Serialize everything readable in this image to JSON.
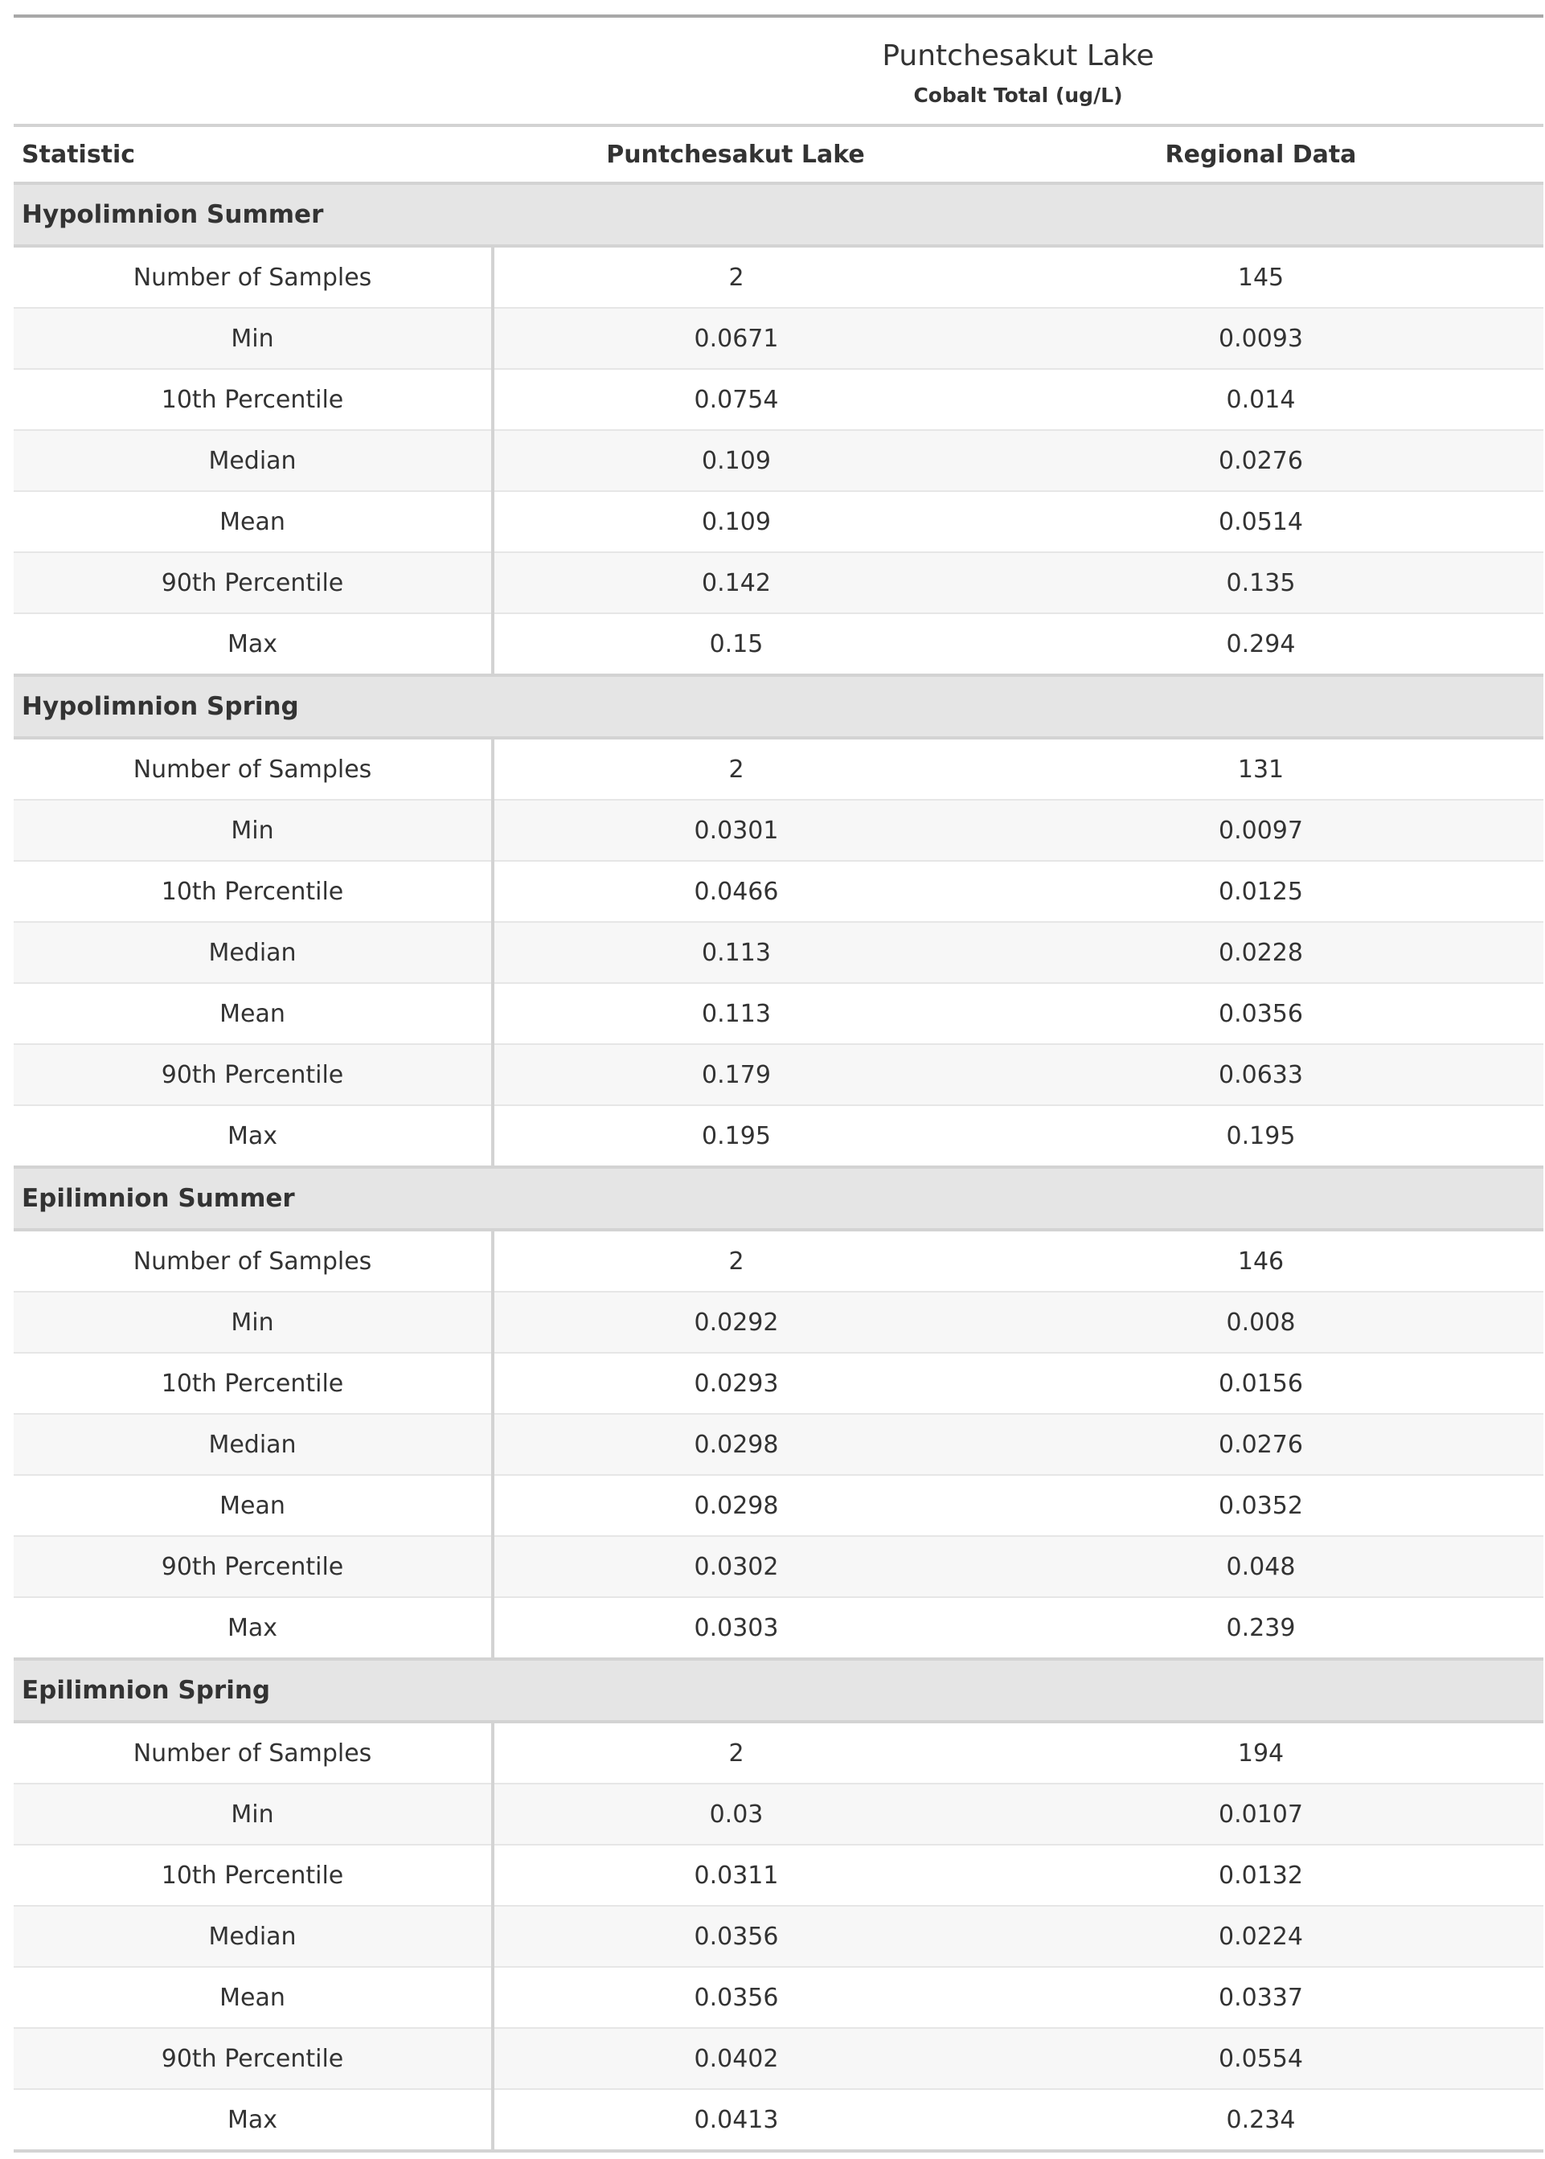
{
  "header": {
    "title": "Puntchesakut Lake",
    "subtitle": "Cobalt Total (ug/L)"
  },
  "columns": [
    "Statistic",
    "Puntchesakut Lake",
    "Regional Data"
  ],
  "groups": [
    {
      "label": "Hypolimnion Summer",
      "rows": [
        [
          "Number of Samples",
          "2",
          "145"
        ],
        [
          "Min",
          "0.0671",
          "0.0093"
        ],
        [
          "10th Percentile",
          "0.0754",
          "0.014"
        ],
        [
          "Median",
          "0.109",
          "0.0276"
        ],
        [
          "Mean",
          "0.109",
          "0.0514"
        ],
        [
          "90th Percentile",
          "0.142",
          "0.135"
        ],
        [
          "Max",
          "0.15",
          "0.294"
        ]
      ]
    },
    {
      "label": "Hypolimnion Spring",
      "rows": [
        [
          "Number of Samples",
          "2",
          "131"
        ],
        [
          "Min",
          "0.0301",
          "0.0097"
        ],
        [
          "10th Percentile",
          "0.0466",
          "0.0125"
        ],
        [
          "Median",
          "0.113",
          "0.0228"
        ],
        [
          "Mean",
          "0.113",
          "0.0356"
        ],
        [
          "90th Percentile",
          "0.179",
          "0.0633"
        ],
        [
          "Max",
          "0.195",
          "0.195"
        ]
      ]
    },
    {
      "label": "Epilimnion Summer",
      "rows": [
        [
          "Number of Samples",
          "2",
          "146"
        ],
        [
          "Min",
          "0.0292",
          "0.008"
        ],
        [
          "10th Percentile",
          "0.0293",
          "0.0156"
        ],
        [
          "Median",
          "0.0298",
          "0.0276"
        ],
        [
          "Mean",
          "0.0298",
          "0.0352"
        ],
        [
          "90th Percentile",
          "0.0302",
          "0.048"
        ],
        [
          "Max",
          "0.0303",
          "0.239"
        ]
      ]
    },
    {
      "label": "Epilimnion Spring",
      "rows": [
        [
          "Number of Samples",
          "2",
          "194"
        ],
        [
          "Min",
          "0.03",
          "0.0107"
        ],
        [
          "10th Percentile",
          "0.0311",
          "0.0132"
        ],
        [
          "Median",
          "0.0356",
          "0.0224"
        ],
        [
          "Mean",
          "0.0356",
          "0.0337"
        ],
        [
          "90th Percentile",
          "0.0402",
          "0.0554"
        ],
        [
          "Max",
          "0.0413",
          "0.234"
        ]
      ]
    }
  ]
}
